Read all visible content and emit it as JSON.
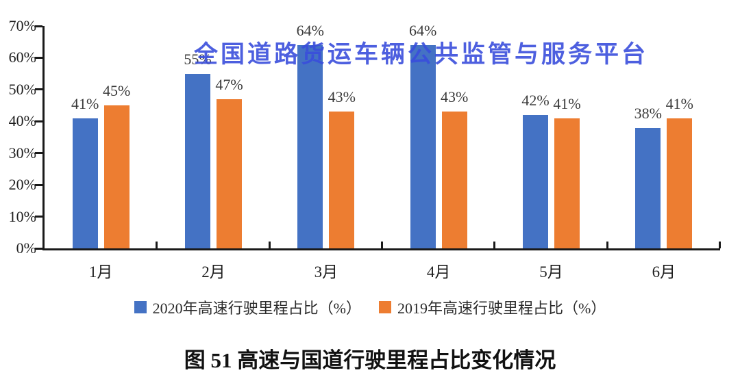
{
  "watermark": {
    "text": "全国道路货运车辆公共监管与服务平台",
    "color": "#3A4EDB"
  },
  "caption": {
    "text": "图 51 高速与国道行驶里程占比变化情况"
  },
  "colors": {
    "series_2020": "#4472C4",
    "series_2019": "#ED7D31",
    "axis": "#1A1A1A",
    "data_label": "#3A3A3A",
    "background": "#FFFFFF"
  },
  "chart_data": {
    "type": "bar",
    "title": "",
    "xlabel": "",
    "ylabel": "",
    "categories": [
      "1月",
      "2月",
      "3月",
      "4月",
      "5月",
      "6月"
    ],
    "series": [
      {
        "name": "2020年高速行驶里程占比（%）",
        "color": "#4472C4",
        "values": [
          41,
          55,
          64,
          64,
          42,
          38
        ]
      },
      {
        "name": "2019年高速行驶里程占比（%）",
        "color": "#ED7D31",
        "values": [
          45,
          47,
          43,
          43,
          41,
          41
        ]
      }
    ],
    "data_labels": true,
    "data_label_suffix": "%",
    "ylim": [
      0,
      70
    ],
    "ytick_step": 10,
    "yticks": [
      "0%",
      "10%",
      "20%",
      "30%",
      "40%",
      "50%",
      "60%",
      "70%"
    ],
    "grid": false,
    "legend_position": "bottom"
  }
}
